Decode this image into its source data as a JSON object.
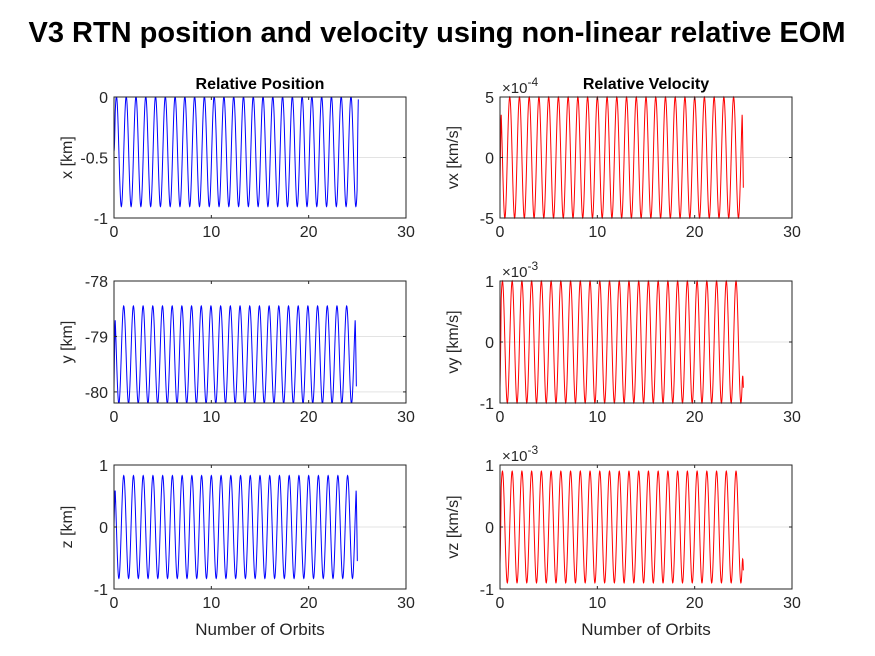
{
  "figure_title": "V3 RTN position and velocity using non-linear relative EOM",
  "chart_data": [
    {
      "type": "line",
      "id": "pos-x",
      "title": "Relative Position",
      "xlabel": "",
      "ylabel": "x [km]",
      "xlim": [
        0,
        30
      ],
      "ylim": [
        -1,
        0
      ],
      "xticks": [
        0,
        10,
        20,
        30
      ],
      "yticks": [
        -1,
        -0.5,
        0
      ],
      "ytick_labels": [
        "-1",
        "-0.5",
        "0"
      ],
      "exponent": "",
      "grid": "horizontal only",
      "series": [
        {
          "color": "#0000ff",
          "x_range": [
            0,
            25.1
          ],
          "periods": 25,
          "center": -0.45,
          "amplitude": 0.455,
          "start_value": -0.45,
          "end_value": -0.02,
          "phase": "sine"
        }
      ]
    },
    {
      "type": "line",
      "id": "vel-x",
      "title": "Relative Velocity",
      "xlabel": "",
      "ylabel": "vx [km/s]",
      "xlim": [
        0,
        30
      ],
      "ylim": [
        -5,
        5
      ],
      "xticks": [
        0,
        10,
        20,
        30
      ],
      "yticks": [
        -5,
        0,
        5
      ],
      "ytick_labels": [
        "-5",
        "0",
        "5"
      ],
      "exponent": "-4",
      "grid": "horizontal only",
      "series": [
        {
          "color": "#ff0000",
          "x_range": [
            0,
            25.0
          ],
          "periods": 25,
          "center": 0,
          "amplitude": 5.0,
          "start_value": -2.5,
          "end_value": -2.5,
          "phase": "cosine"
        }
      ]
    },
    {
      "type": "line",
      "id": "pos-y",
      "title": "",
      "xlabel": "",
      "ylabel": "y [km]",
      "xlim": [
        0,
        30
      ],
      "ylim": [
        -80.2,
        -78
      ],
      "xticks": [
        0,
        10,
        20,
        30
      ],
      "yticks": [
        -80,
        -79,
        -78
      ],
      "ytick_labels": [
        "-80",
        "-79",
        "-78"
      ],
      "exponent": "",
      "grid": "horizontal only",
      "series": [
        {
          "color": "#0000ff",
          "x_range": [
            0,
            24.9
          ],
          "periods": 25,
          "center": -79.33,
          "amplitude": 0.88,
          "start_value": -79.95,
          "end_value": -79.9,
          "phase": "cosine"
        }
      ]
    },
    {
      "type": "line",
      "id": "vel-y",
      "title": "",
      "xlabel": "",
      "ylabel": "vy [km/s]",
      "xlim": [
        0,
        30
      ],
      "ylim": [
        -1,
        1
      ],
      "xticks": [
        0,
        10,
        20,
        30
      ],
      "yticks": [
        -1,
        0,
        1
      ],
      "ytick_labels": [
        "-1",
        "0",
        "1"
      ],
      "exponent": "-3",
      "grid": "horizontal only",
      "series": [
        {
          "color": "#ff0000",
          "x_range": [
            0,
            25.0
          ],
          "periods": 25,
          "center": 0,
          "amplitude": 1.0,
          "start_value": -0.75,
          "end_value": -0.75,
          "phase": "sine"
        }
      ]
    },
    {
      "type": "line",
      "id": "pos-z",
      "title": "",
      "xlabel": "Number of Orbits",
      "ylabel": "z [km]",
      "xlim": [
        0,
        30
      ],
      "ylim": [
        -1,
        1
      ],
      "xticks": [
        0,
        10,
        20,
        30
      ],
      "yticks": [
        -1,
        0,
        1
      ],
      "ytick_labels": [
        "-1",
        "0",
        "1"
      ],
      "exponent": "",
      "grid": "horizontal only",
      "series": [
        {
          "color": "#0000ff",
          "x_range": [
            0,
            25.0
          ],
          "periods": 25,
          "center": 0,
          "amplitude": 0.83,
          "start_value": 0.0,
          "end_value": -0.55,
          "phase": "cosine"
        }
      ]
    },
    {
      "type": "line",
      "id": "vel-z",
      "title": "",
      "xlabel": "Number of Orbits",
      "ylabel": "vz [km/s]",
      "xlim": [
        0,
        30
      ],
      "ylim": [
        -1,
        1
      ],
      "xticks": [
        0,
        10,
        20,
        30
      ],
      "yticks": [
        -1,
        0,
        1
      ],
      "ytick_labels": [
        "-1",
        "0",
        "1"
      ],
      "exponent": "-3",
      "grid": "horizontal only",
      "series": [
        {
          "color": "#ff0000",
          "x_range": [
            0,
            25.0
          ],
          "periods": 25,
          "center": 0,
          "amplitude": 0.9,
          "start_value": -0.6,
          "end_value": -0.7,
          "phase": "sine"
        }
      ]
    }
  ]
}
